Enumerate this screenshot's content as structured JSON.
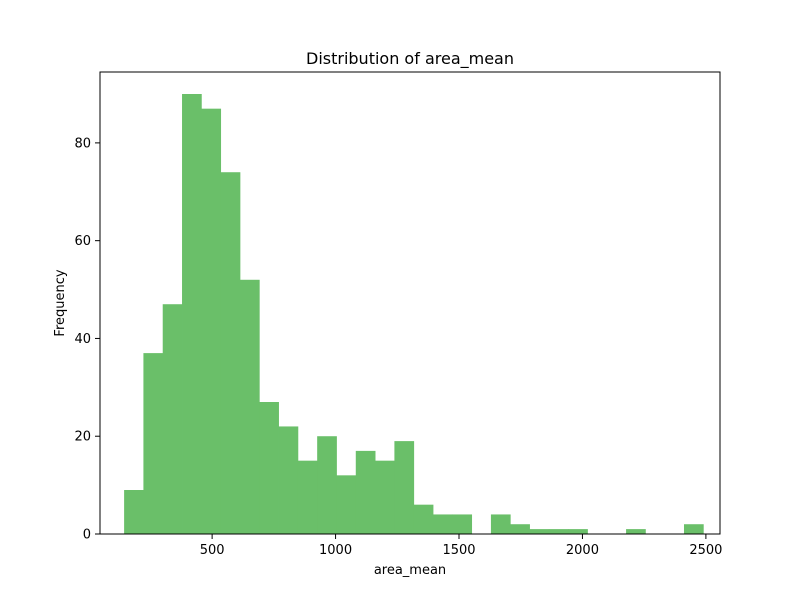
{
  "chart_data": {
    "type": "bar",
    "title": "Distribution of area_mean",
    "xlabel": "area_mean",
    "ylabel": "Frequency",
    "xlim": [
      45.85,
      2557.15
    ],
    "ylim": [
      0,
      94.5
    ],
    "xticks": [
      500,
      1000,
      1500,
      2000,
      2500
    ],
    "yticks": [
      0,
      20,
      40,
      60,
      80
    ],
    "bin_edges": [
      143.5,
      221.7,
      299.9,
      378.1,
      456.3,
      534.5,
      612.7,
      690.9,
      769.1,
      847.3,
      925.5,
      1003.7,
      1081.9,
      1160.1,
      1238.3,
      1316.5,
      1394.7,
      1472.9,
      1551.1,
      1629.3,
      1707.5,
      1785.7,
      1863.9,
      1942.1,
      2020.3,
      2098.5,
      2176.7,
      2254.9,
      2333.1,
      2411.3,
      2489.5
    ],
    "values": [
      9,
      37,
      47,
      90,
      87,
      74,
      52,
      27,
      22,
      15,
      20,
      12,
      17,
      15,
      19,
      6,
      4,
      4,
      0,
      4,
      2,
      1,
      1,
      1,
      0,
      0,
      1,
      0,
      0,
      2
    ],
    "bar_color": "#6abf69",
    "grid": false,
    "legend": "none"
  }
}
